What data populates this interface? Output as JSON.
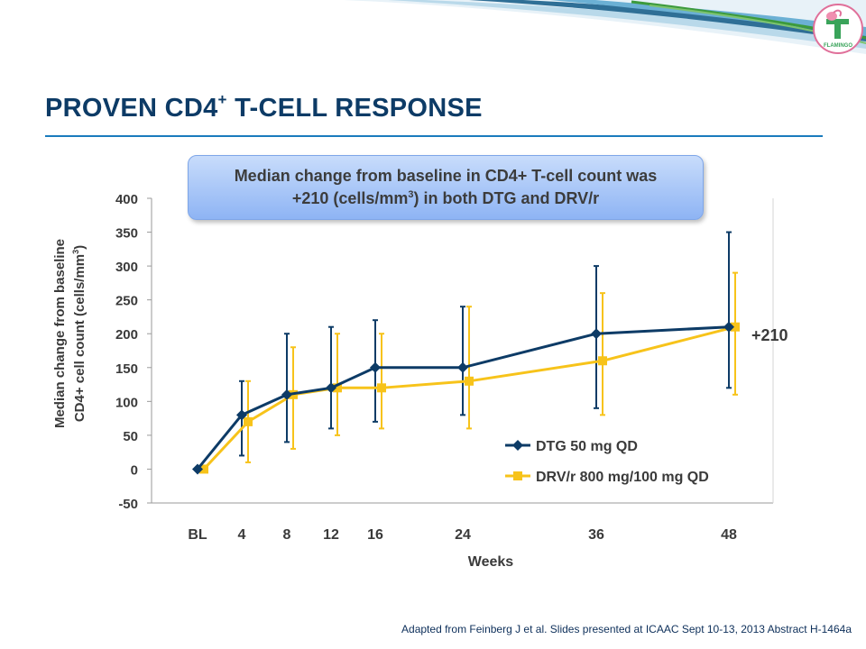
{
  "slide": {
    "title_main": "PROVEN CD4",
    "title_sup": "+",
    "title_rest": " T-CELL RESPONSE",
    "logo_text": "FLAMINGO",
    "source": "Adapted from Feinberg J et al. Slides presented at ICAAC Sept 10-13, 2013 Abstract H-1464a"
  },
  "callout": {
    "line1": "Median change from baseline in CD4+ T-cell count was",
    "line2_pre": "+210 (cells/mm",
    "line2_sup": "3",
    "line2_post": ") in both DTG and DRV/r"
  },
  "colors": {
    "dtg": "#0d3b66",
    "drv": "#f7c31a",
    "title": "#0d3b66",
    "rule": "#1a7bbd"
  },
  "chart_data": {
    "type": "line",
    "xlabel": "Weeks",
    "ylabel_line1": "Median change from baseline",
    "ylabel_line2_pre": "CD4+ cell count (cells/mm",
    "ylabel_line2_sup": "3",
    "ylabel_line2_post": ")",
    "ylim": [
      -50,
      400
    ],
    "yticks": [
      -50,
      0,
      50,
      100,
      150,
      200,
      250,
      300,
      350,
      400
    ],
    "x_ticks": [
      "BL",
      "4",
      "8",
      "12",
      "16",
      "24",
      "36",
      "48"
    ],
    "grid": false,
    "legend_position": "bottom-right",
    "series": [
      {
        "name": "DTG 50 mg QD",
        "marker": "diamond",
        "x": [
          0,
          4,
          8,
          12,
          16,
          24,
          36,
          48
        ],
        "y": [
          0,
          80,
          110,
          120,
          150,
          150,
          200,
          210
        ],
        "err_low": [
          null,
          20,
          40,
          60,
          70,
          80,
          90,
          120
        ],
        "err_high": [
          null,
          130,
          200,
          210,
          220,
          240,
          300,
          350
        ]
      },
      {
        "name": "DRV/r 800 mg/100 mg QD",
        "marker": "square",
        "x": [
          0,
          4,
          8,
          12,
          16,
          24,
          36,
          48
        ],
        "y": [
          0,
          70,
          110,
          120,
          120,
          130,
          160,
          210
        ],
        "err_low": [
          null,
          10,
          30,
          50,
          60,
          60,
          80,
          110
        ],
        "err_high": [
          null,
          130,
          180,
          200,
          200,
          240,
          260,
          290
        ]
      }
    ],
    "annotation": "+210"
  }
}
